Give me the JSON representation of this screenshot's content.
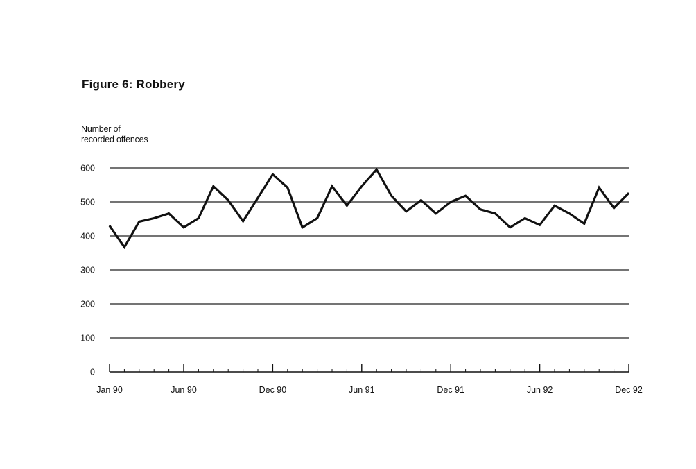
{
  "figure": {
    "title": "Figure 6:  Robbery",
    "y_caption_line1": "Number of",
    "y_caption_line2": "recorded offences"
  },
  "chart_data": {
    "type": "line",
    "title": "Figure 6:  Robbery",
    "xlabel": "",
    "ylabel": "Number of recorded offences",
    "ylim": [
      0,
      600
    ],
    "yticks": [
      0,
      100,
      200,
      300,
      400,
      500,
      600
    ],
    "xtick_labels": [
      "Jan 90",
      "Jun 90",
      "Dec 90",
      "Jun 91",
      "Dec 91",
      "Jun 92",
      "Dec 92"
    ],
    "xtick_positions": [
      0,
      5,
      11,
      17,
      23,
      29,
      35
    ],
    "x": [
      "Jan 90",
      "Feb 90",
      "Mar 90",
      "Apr 90",
      "May 90",
      "Jun 90",
      "Jul 90",
      "Aug 90",
      "Sep 90",
      "Oct 90",
      "Nov 90",
      "Dec 90",
      "Jan 91",
      "Feb 91",
      "Mar 91",
      "Apr 91",
      "May 91",
      "Jun 91",
      "Jul 91",
      "Aug 91",
      "Sep 91",
      "Oct 91",
      "Nov 91",
      "Dec 91",
      "Jan 92",
      "Feb 92",
      "Mar 92",
      "Apr 92",
      "May 92",
      "Jun 92",
      "Jul 92",
      "Aug 92",
      "Sep 92",
      "Oct 92",
      "Nov 92",
      "Dec 92"
    ],
    "series": [
      {
        "values": [
          430,
          367,
          442,
          452,
          466,
          425,
          452,
          546,
          505,
          443,
          512,
          581,
          542,
          425,
          452,
          546,
          489,
          546,
          595,
          518,
          472,
          505,
          466,
          500,
          518,
          478,
          466,
          425,
          452,
          432,
          489,
          466,
          436,
          542,
          482,
          526
        ]
      }
    ],
    "grid": true,
    "line_color": "#111111"
  }
}
